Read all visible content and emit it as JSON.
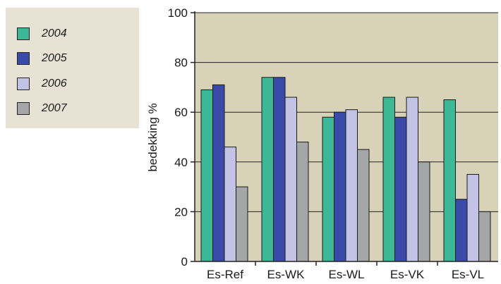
{
  "chart_data": {
    "type": "bar",
    "categories": [
      "Es-Ref",
      "Es-WK",
      "Es-WL",
      "Es-VK",
      "Es-VL"
    ],
    "series": [
      {
        "name": "2004",
        "color": "#3cb896",
        "values": [
          69,
          74,
          58,
          66,
          65
        ]
      },
      {
        "name": "2005",
        "color": "#3a4aa8",
        "values": [
          71,
          74,
          60,
          58,
          25
        ]
      },
      {
        "name": "2006",
        "color": "#c3c3e6",
        "values": [
          46,
          66,
          61,
          66,
          35
        ]
      },
      {
        "name": "2007",
        "color": "#a4a6a8",
        "values": [
          30,
          48,
          45,
          40,
          20
        ]
      }
    ],
    "xlabel": "",
    "ylabel": "bedekking %",
    "ylim": [
      0,
      100
    ],
    "yticks": [
      0,
      20,
      40,
      60,
      80,
      100
    ],
    "grid": true,
    "plot_background": "#d7d2b8",
    "legend_background": "#e7e2d4",
    "legend_position": "left"
  }
}
